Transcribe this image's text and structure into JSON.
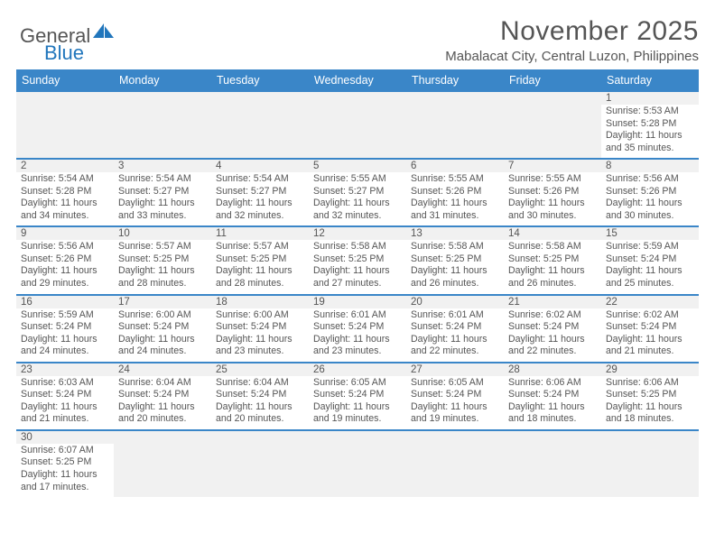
{
  "brand": {
    "part1": "General",
    "part2": "Blue",
    "sail_color": "#2176bc"
  },
  "title": "November 2025",
  "location": "Mabalacat City, Central Luzon, Philippines",
  "header_bg": "#3a86c8",
  "dayNames": [
    "Sunday",
    "Monday",
    "Tuesday",
    "Wednesday",
    "Thursday",
    "Friday",
    "Saturday"
  ],
  "sunrise_label": "Sunrise:",
  "sunset_label": "Sunset:",
  "daylight_label": "Daylight:",
  "weeks": [
    [
      null,
      null,
      null,
      null,
      null,
      null,
      {
        "d": "1",
        "sr": "5:53 AM",
        "ss": "5:28 PM",
        "dl": "11 hours and 35 minutes."
      }
    ],
    [
      {
        "d": "2",
        "sr": "5:54 AM",
        "ss": "5:28 PM",
        "dl": "11 hours and 34 minutes."
      },
      {
        "d": "3",
        "sr": "5:54 AM",
        "ss": "5:27 PM",
        "dl": "11 hours and 33 minutes."
      },
      {
        "d": "4",
        "sr": "5:54 AM",
        "ss": "5:27 PM",
        "dl": "11 hours and 32 minutes."
      },
      {
        "d": "5",
        "sr": "5:55 AM",
        "ss": "5:27 PM",
        "dl": "11 hours and 32 minutes."
      },
      {
        "d": "6",
        "sr": "5:55 AM",
        "ss": "5:26 PM",
        "dl": "11 hours and 31 minutes."
      },
      {
        "d": "7",
        "sr": "5:55 AM",
        "ss": "5:26 PM",
        "dl": "11 hours and 30 minutes."
      },
      {
        "d": "8",
        "sr": "5:56 AM",
        "ss": "5:26 PM",
        "dl": "11 hours and 30 minutes."
      }
    ],
    [
      {
        "d": "9",
        "sr": "5:56 AM",
        "ss": "5:26 PM",
        "dl": "11 hours and 29 minutes."
      },
      {
        "d": "10",
        "sr": "5:57 AM",
        "ss": "5:25 PM",
        "dl": "11 hours and 28 minutes."
      },
      {
        "d": "11",
        "sr": "5:57 AM",
        "ss": "5:25 PM",
        "dl": "11 hours and 28 minutes."
      },
      {
        "d": "12",
        "sr": "5:58 AM",
        "ss": "5:25 PM",
        "dl": "11 hours and 27 minutes."
      },
      {
        "d": "13",
        "sr": "5:58 AM",
        "ss": "5:25 PM",
        "dl": "11 hours and 26 minutes."
      },
      {
        "d": "14",
        "sr": "5:58 AM",
        "ss": "5:25 PM",
        "dl": "11 hours and 26 minutes."
      },
      {
        "d": "15",
        "sr": "5:59 AM",
        "ss": "5:24 PM",
        "dl": "11 hours and 25 minutes."
      }
    ],
    [
      {
        "d": "16",
        "sr": "5:59 AM",
        "ss": "5:24 PM",
        "dl": "11 hours and 24 minutes."
      },
      {
        "d": "17",
        "sr": "6:00 AM",
        "ss": "5:24 PM",
        "dl": "11 hours and 24 minutes."
      },
      {
        "d": "18",
        "sr": "6:00 AM",
        "ss": "5:24 PM",
        "dl": "11 hours and 23 minutes."
      },
      {
        "d": "19",
        "sr": "6:01 AM",
        "ss": "5:24 PM",
        "dl": "11 hours and 23 minutes."
      },
      {
        "d": "20",
        "sr": "6:01 AM",
        "ss": "5:24 PM",
        "dl": "11 hours and 22 minutes."
      },
      {
        "d": "21",
        "sr": "6:02 AM",
        "ss": "5:24 PM",
        "dl": "11 hours and 22 minutes."
      },
      {
        "d": "22",
        "sr": "6:02 AM",
        "ss": "5:24 PM",
        "dl": "11 hours and 21 minutes."
      }
    ],
    [
      {
        "d": "23",
        "sr": "6:03 AM",
        "ss": "5:24 PM",
        "dl": "11 hours and 21 minutes."
      },
      {
        "d": "24",
        "sr": "6:04 AM",
        "ss": "5:24 PM",
        "dl": "11 hours and 20 minutes."
      },
      {
        "d": "25",
        "sr": "6:04 AM",
        "ss": "5:24 PM",
        "dl": "11 hours and 20 minutes."
      },
      {
        "d": "26",
        "sr": "6:05 AM",
        "ss": "5:24 PM",
        "dl": "11 hours and 19 minutes."
      },
      {
        "d": "27",
        "sr": "6:05 AM",
        "ss": "5:24 PM",
        "dl": "11 hours and 19 minutes."
      },
      {
        "d": "28",
        "sr": "6:06 AM",
        "ss": "5:24 PM",
        "dl": "11 hours and 18 minutes."
      },
      {
        "d": "29",
        "sr": "6:06 AM",
        "ss": "5:25 PM",
        "dl": "11 hours and 18 minutes."
      }
    ],
    [
      {
        "d": "30",
        "sr": "6:07 AM",
        "ss": "5:25 PM",
        "dl": "11 hours and 17 minutes."
      },
      null,
      null,
      null,
      null,
      null,
      null
    ]
  ]
}
